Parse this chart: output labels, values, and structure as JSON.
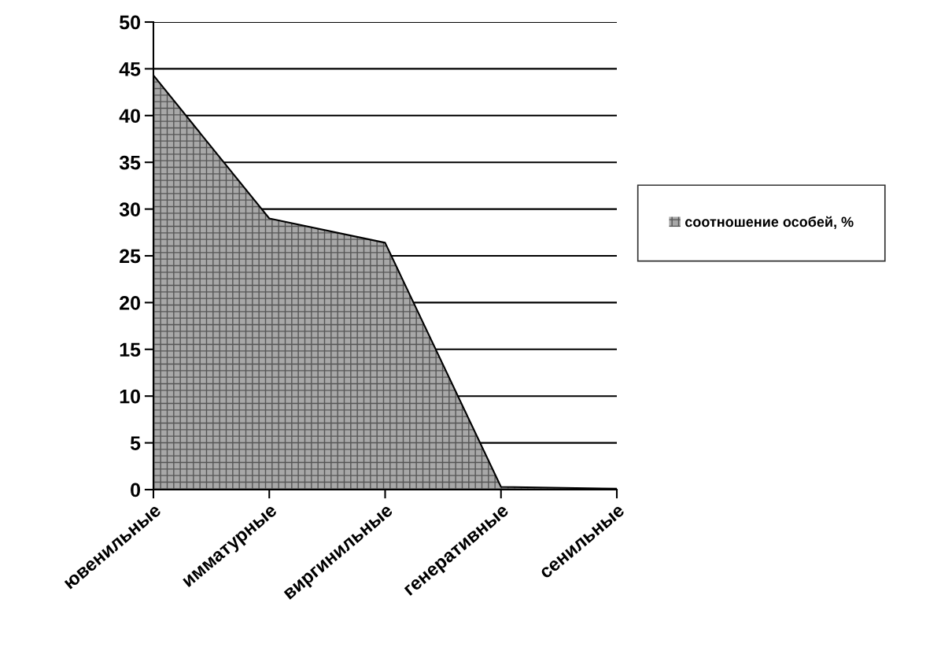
{
  "chart_data": {
    "type": "area",
    "categories": [
      "ювенильные",
      "имматурные",
      "виргинильные",
      "генеративные",
      "сенильные"
    ],
    "series": [
      {
        "name": "соотношение особей, %",
        "color": "#a8a8a8",
        "values": [
          44.3,
          29.0,
          26.4,
          0.3,
          0.1
        ]
      }
    ],
    "ylim": [
      0,
      50
    ],
    "yticks": [
      0,
      5,
      10,
      15,
      20,
      25,
      30,
      35,
      40,
      45,
      50
    ],
    "grid": "y",
    "legend": "right"
  }
}
